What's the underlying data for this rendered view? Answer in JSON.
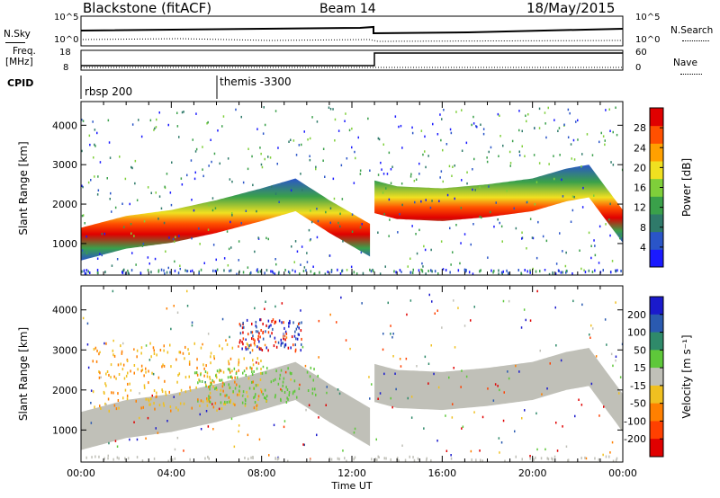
{
  "header": {
    "station": "Blackstone (fitACF)",
    "beam": "Beam 14",
    "date": "18/May/2015"
  },
  "top_panels": {
    "nsky_label": "N.Sky",
    "nsearch_label": "N.Search",
    "nsky_ticks": [
      "10^5",
      "10^0"
    ],
    "nsearch_ticks": [
      "10^5",
      "10^0"
    ],
    "freq_label_line1": "Freq.",
    "freq_label_line2": "[MHz]",
    "freq_ticks": [
      "18",
      "8"
    ],
    "nave_label": "Nave",
    "nave_ticks": [
      "60",
      "0"
    ],
    "cpid_label": "CPID",
    "cpid_segments": [
      "rbsp 200",
      "themis -3300"
    ]
  },
  "chart_data": [
    {
      "type": "heatmap",
      "title": "",
      "xlabel": "",
      "ylabel": "Slant Range [km]",
      "xlim": [
        0,
        24
      ],
      "ylim": [
        200,
        4600
      ],
      "y_ticks": [
        "1000",
        "2000",
        "3000",
        "4000"
      ],
      "colorbar_label": "Power [dB]",
      "colorbar_ticks": [
        "4",
        "8",
        "12",
        "16",
        "20",
        "24",
        "28"
      ],
      "colorbar_colors": [
        "#1a1aff",
        "#2a55c8",
        "#2f7a6a",
        "#3aa04a",
        "#7fcf3a",
        "#f0e020",
        "#ffa000",
        "#ff5000",
        "#e00000"
      ],
      "colorbar_range": [
        0,
        32
      ],
      "bands": [
        {
          "name": "main",
          "x": [
            0,
            1,
            2,
            4,
            6,
            8,
            9.5,
            11,
            12.8
          ],
          "y": [
            950,
            1100,
            1250,
            1400,
            1650,
            1950,
            2200,
            1650,
            1050
          ]
        },
        {
          "name": "after",
          "x": [
            13,
            14,
            16,
            18,
            20,
            21.5,
            22.5,
            24
          ],
          "y": [
            2150,
            2000,
            1950,
            2050,
            2200,
            2450,
            2550,
            1400
          ]
        }
      ]
    },
    {
      "type": "heatmap",
      "title": "",
      "xlabel": "Time UT",
      "ylabel": "Slant Range [km]",
      "xlim": [
        0,
        24
      ],
      "ylim": [
        200,
        4600
      ],
      "x_ticks": [
        "00:00",
        "04:00",
        "08:00",
        "12:00",
        "16:00",
        "20:00",
        "00:00"
      ],
      "y_ticks": [
        "1000",
        "2000",
        "3000",
        "4000"
      ],
      "colorbar_label": "Velocity [m s⁻¹]",
      "colorbar_ticks": [
        "200",
        "100",
        "50",
        "15",
        "-15",
        "-50",
        "-100",
        "-200"
      ],
      "colorbar_colors": [
        "#1a1acc",
        "#2a5ab0",
        "#2f8a6a",
        "#5ec83a",
        "#c0c0b8",
        "#f0c020",
        "#ff8000",
        "#ff4000",
        "#e00000"
      ]
    }
  ]
}
